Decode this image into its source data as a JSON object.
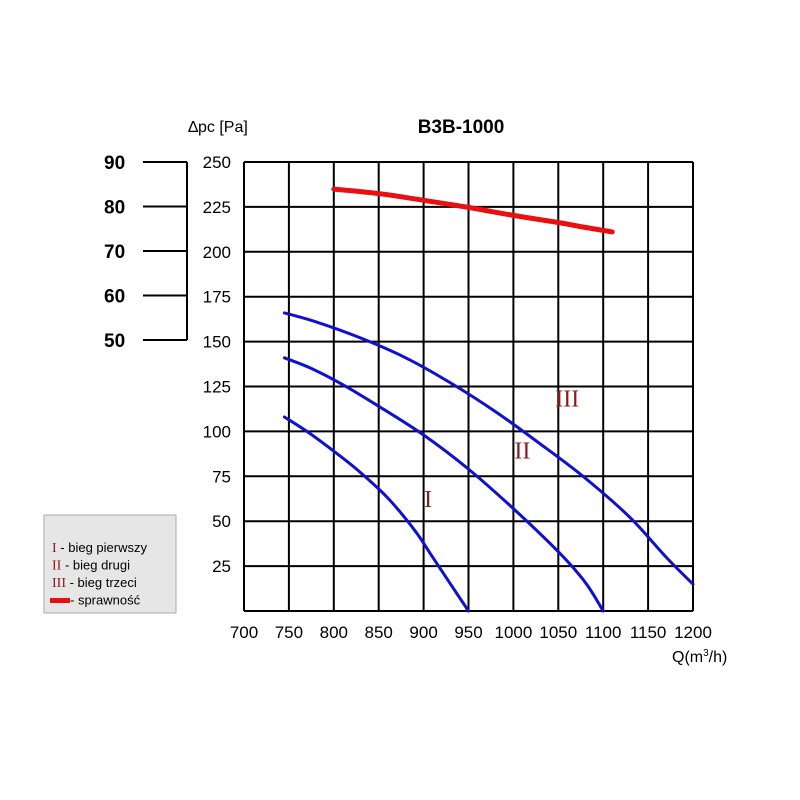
{
  "chart_data": {
    "type": "line",
    "title": "B3B-1000",
    "xlabel": "Q(m³/h)",
    "xlabel_prefix": "Q(m",
    "xlabel_sup": "3",
    "xlabel_suffix": "/h)",
    "ylabel": "∆pc [Pa]",
    "xlim": [
      700,
      1200
    ],
    "ylim": [
      0,
      250
    ],
    "xticks": [
      "700",
      "750",
      "800",
      "850",
      "900",
      "950",
      "1000",
      "1050",
      "1100",
      "1150",
      "1200"
    ],
    "yticks": [
      "25",
      "50",
      "75",
      "100",
      "125",
      "150",
      "175",
      "200",
      "225",
      "250"
    ],
    "efficiency_axis": {
      "ticks": [
        "50",
        "60",
        "70",
        "80",
        "90"
      ],
      "range": [
        50,
        90
      ]
    },
    "grid": true,
    "series": [
      {
        "name": "I",
        "color": "#1010d0",
        "label_position": {
          "x": 905,
          "y": 58
        },
        "points": [
          [
            745,
            108
          ],
          [
            770,
            100
          ],
          [
            800,
            89
          ],
          [
            830,
            77
          ],
          [
            860,
            63
          ],
          [
            890,
            45
          ],
          [
            910,
            30
          ],
          [
            930,
            15
          ],
          [
            950,
            0
          ]
        ]
      },
      {
        "name": "II",
        "color": "#1010d0",
        "label_position": {
          "x": 1010,
          "y": 85
        },
        "points": [
          [
            745,
            141
          ],
          [
            775,
            135
          ],
          [
            810,
            126
          ],
          [
            850,
            114
          ],
          [
            900,
            98
          ],
          [
            950,
            79
          ],
          [
            1000,
            57
          ],
          [
            1050,
            33
          ],
          [
            1080,
            16
          ],
          [
            1100,
            0
          ]
        ]
      },
      {
        "name": "III",
        "color": "#1010d0",
        "label_position": {
          "x": 1060,
          "y": 114
        },
        "points": [
          [
            745,
            166
          ],
          [
            780,
            161
          ],
          [
            830,
            152
          ],
          [
            880,
            141
          ],
          [
            930,
            127
          ],
          [
            980,
            111
          ],
          [
            1030,
            93
          ],
          [
            1080,
            74
          ],
          [
            1130,
            52
          ],
          [
            1170,
            30
          ],
          [
            1200,
            15
          ]
        ]
      },
      {
        "name": "sprawność",
        "color": "#e81010",
        "axis": "efficiency",
        "points": [
          [
            800,
            83.9
          ],
          [
            850,
            82.9
          ],
          [
            900,
            81.4
          ],
          [
            950,
            79.8
          ],
          [
            1000,
            78.0
          ],
          [
            1050,
            76.4
          ],
          [
            1080,
            75.3
          ],
          [
            1110,
            74.3
          ]
        ]
      }
    ],
    "legend": {
      "placement": "left",
      "items": [
        {
          "roman": "I",
          "text": " - bieg pierwszy"
        },
        {
          "roman": "II",
          "text": " - bieg drugi"
        },
        {
          "roman": "III",
          "text": " - bieg trzeci"
        },
        {
          "roman": "",
          "text": " - sprawność",
          "line": true
        }
      ]
    },
    "colors": {
      "fan_curve": "#1010d0",
      "efficiency": "#e81010",
      "roman_label": "#8b1a1a",
      "legend_bg": "#e6e6e6"
    }
  }
}
